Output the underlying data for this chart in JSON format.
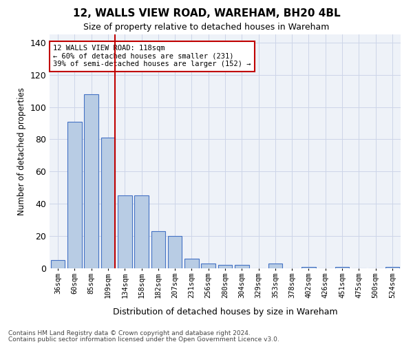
{
  "title": "12, WALLS VIEW ROAD, WAREHAM, BH20 4BL",
  "subtitle": "Size of property relative to detached houses in Wareham",
  "xlabel": "Distribution of detached houses by size in Wareham",
  "ylabel": "Number of detached properties",
  "categories": [
    "36sqm",
    "60sqm",
    "85sqm",
    "109sqm",
    "134sqm",
    "158sqm",
    "182sqm",
    "207sqm",
    "231sqm",
    "256sqm",
    "280sqm",
    "304sqm",
    "329sqm",
    "353sqm",
    "378sqm",
    "402sqm",
    "426sqm",
    "451sqm",
    "475sqm",
    "500sqm",
    "524sqm"
  ],
  "values": [
    5,
    91,
    108,
    81,
    45,
    45,
    23,
    20,
    6,
    3,
    2,
    2,
    0,
    3,
    0,
    1,
    0,
    1,
    0,
    0,
    1
  ],
  "bar_color": "#b8cce4",
  "bar_edgecolor": "#4472c4",
  "vline_xidx": 3,
  "vline_color": "#c00000",
  "annotation_line1": "12 WALLS VIEW ROAD: 118sqm",
  "annotation_line2": "← 60% of detached houses are smaller (231)",
  "annotation_line3": "39% of semi-detached houses are larger (152) →",
  "annotation_box_edgecolor": "#c00000",
  "ylim": [
    0,
    145
  ],
  "yticks": [
    0,
    20,
    40,
    60,
    80,
    100,
    120,
    140
  ],
  "grid_color": "#ccd5e8",
  "bg_color": "#eef2f8",
  "footer1": "Contains HM Land Registry data © Crown copyright and database right 2024.",
  "footer2": "Contains public sector information licensed under the Open Government Licence v3.0."
}
